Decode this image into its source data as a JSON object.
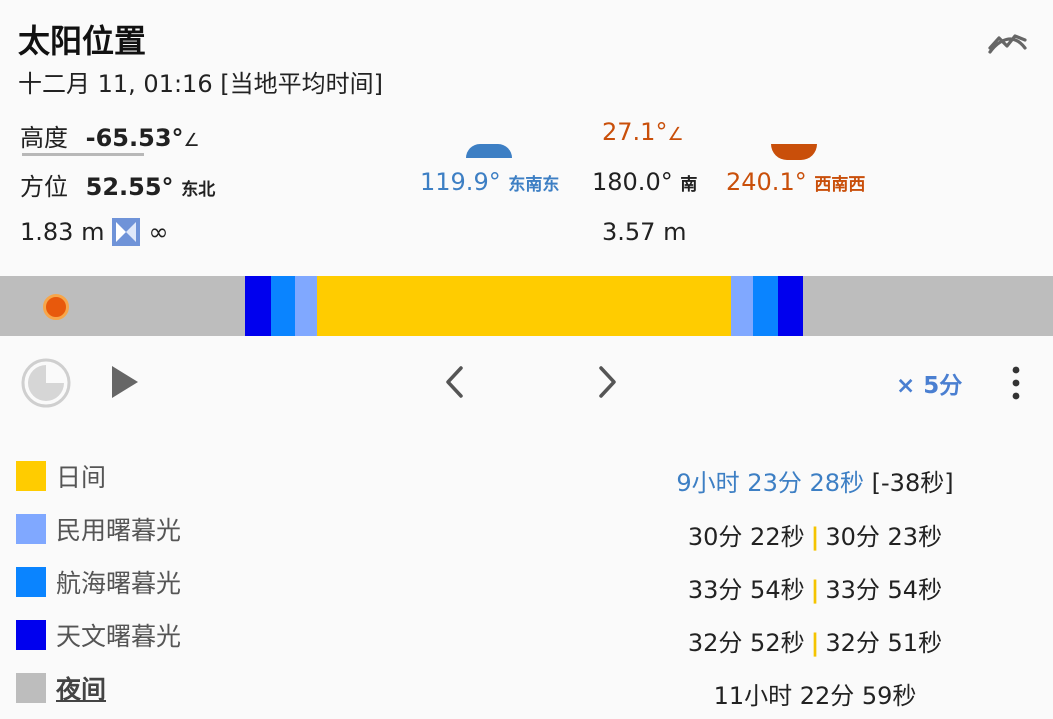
{
  "header": {
    "title": "太阳位置",
    "subtitle": "十二月 11, 01:16 [当地平均时间]"
  },
  "current": {
    "altitude_label": "高度",
    "altitude_value": "-65.53°",
    "azimuth_label": "方位",
    "azimuth_value": "52.55°",
    "azimuth_dir": "东北",
    "shadow_length": "1.83 m",
    "shadow_ratio": "∞"
  },
  "sunrise": {
    "azimuth_value": "119.9°",
    "azimuth_dir": "东南东"
  },
  "noon": {
    "altitude_value": "27.1°",
    "azimuth_value": "180.0°",
    "azimuth_dir": "南",
    "shadow_length": "3.57 m"
  },
  "sunset": {
    "azimuth_value": "240.1°",
    "azimuth_dir": "西南西"
  },
  "controls": {
    "speed_label": "× 5分"
  },
  "legend": [
    {
      "label": "日间",
      "color": "#ffcc00",
      "value": "9小时 23分 28秒",
      "extra": "[-38秒]"
    },
    {
      "label": "民用曙暮光",
      "color": "#80a8ff",
      "value_a": "30分 22秒",
      "value_b": "30分 23秒"
    },
    {
      "label": "航海曙暮光",
      "color": "#0a84ff",
      "value_a": "33分 54秒",
      "value_b": "33分 54秒"
    },
    {
      "label": "天文曙暮光",
      "color": "#0000ee",
      "value_a": "32分 52秒",
      "value_b": "32分 51秒"
    },
    {
      "label": "夜间",
      "color": "#bdbdbd",
      "value": "11小时 22分 59秒"
    }
  ],
  "colors": {
    "day": "#ffcc00",
    "civil": "#80a8ff",
    "nautical": "#0a84ff",
    "astronomical": "#0000ee",
    "night": "#bdbdbd",
    "sun_marker": "#e8590c"
  }
}
